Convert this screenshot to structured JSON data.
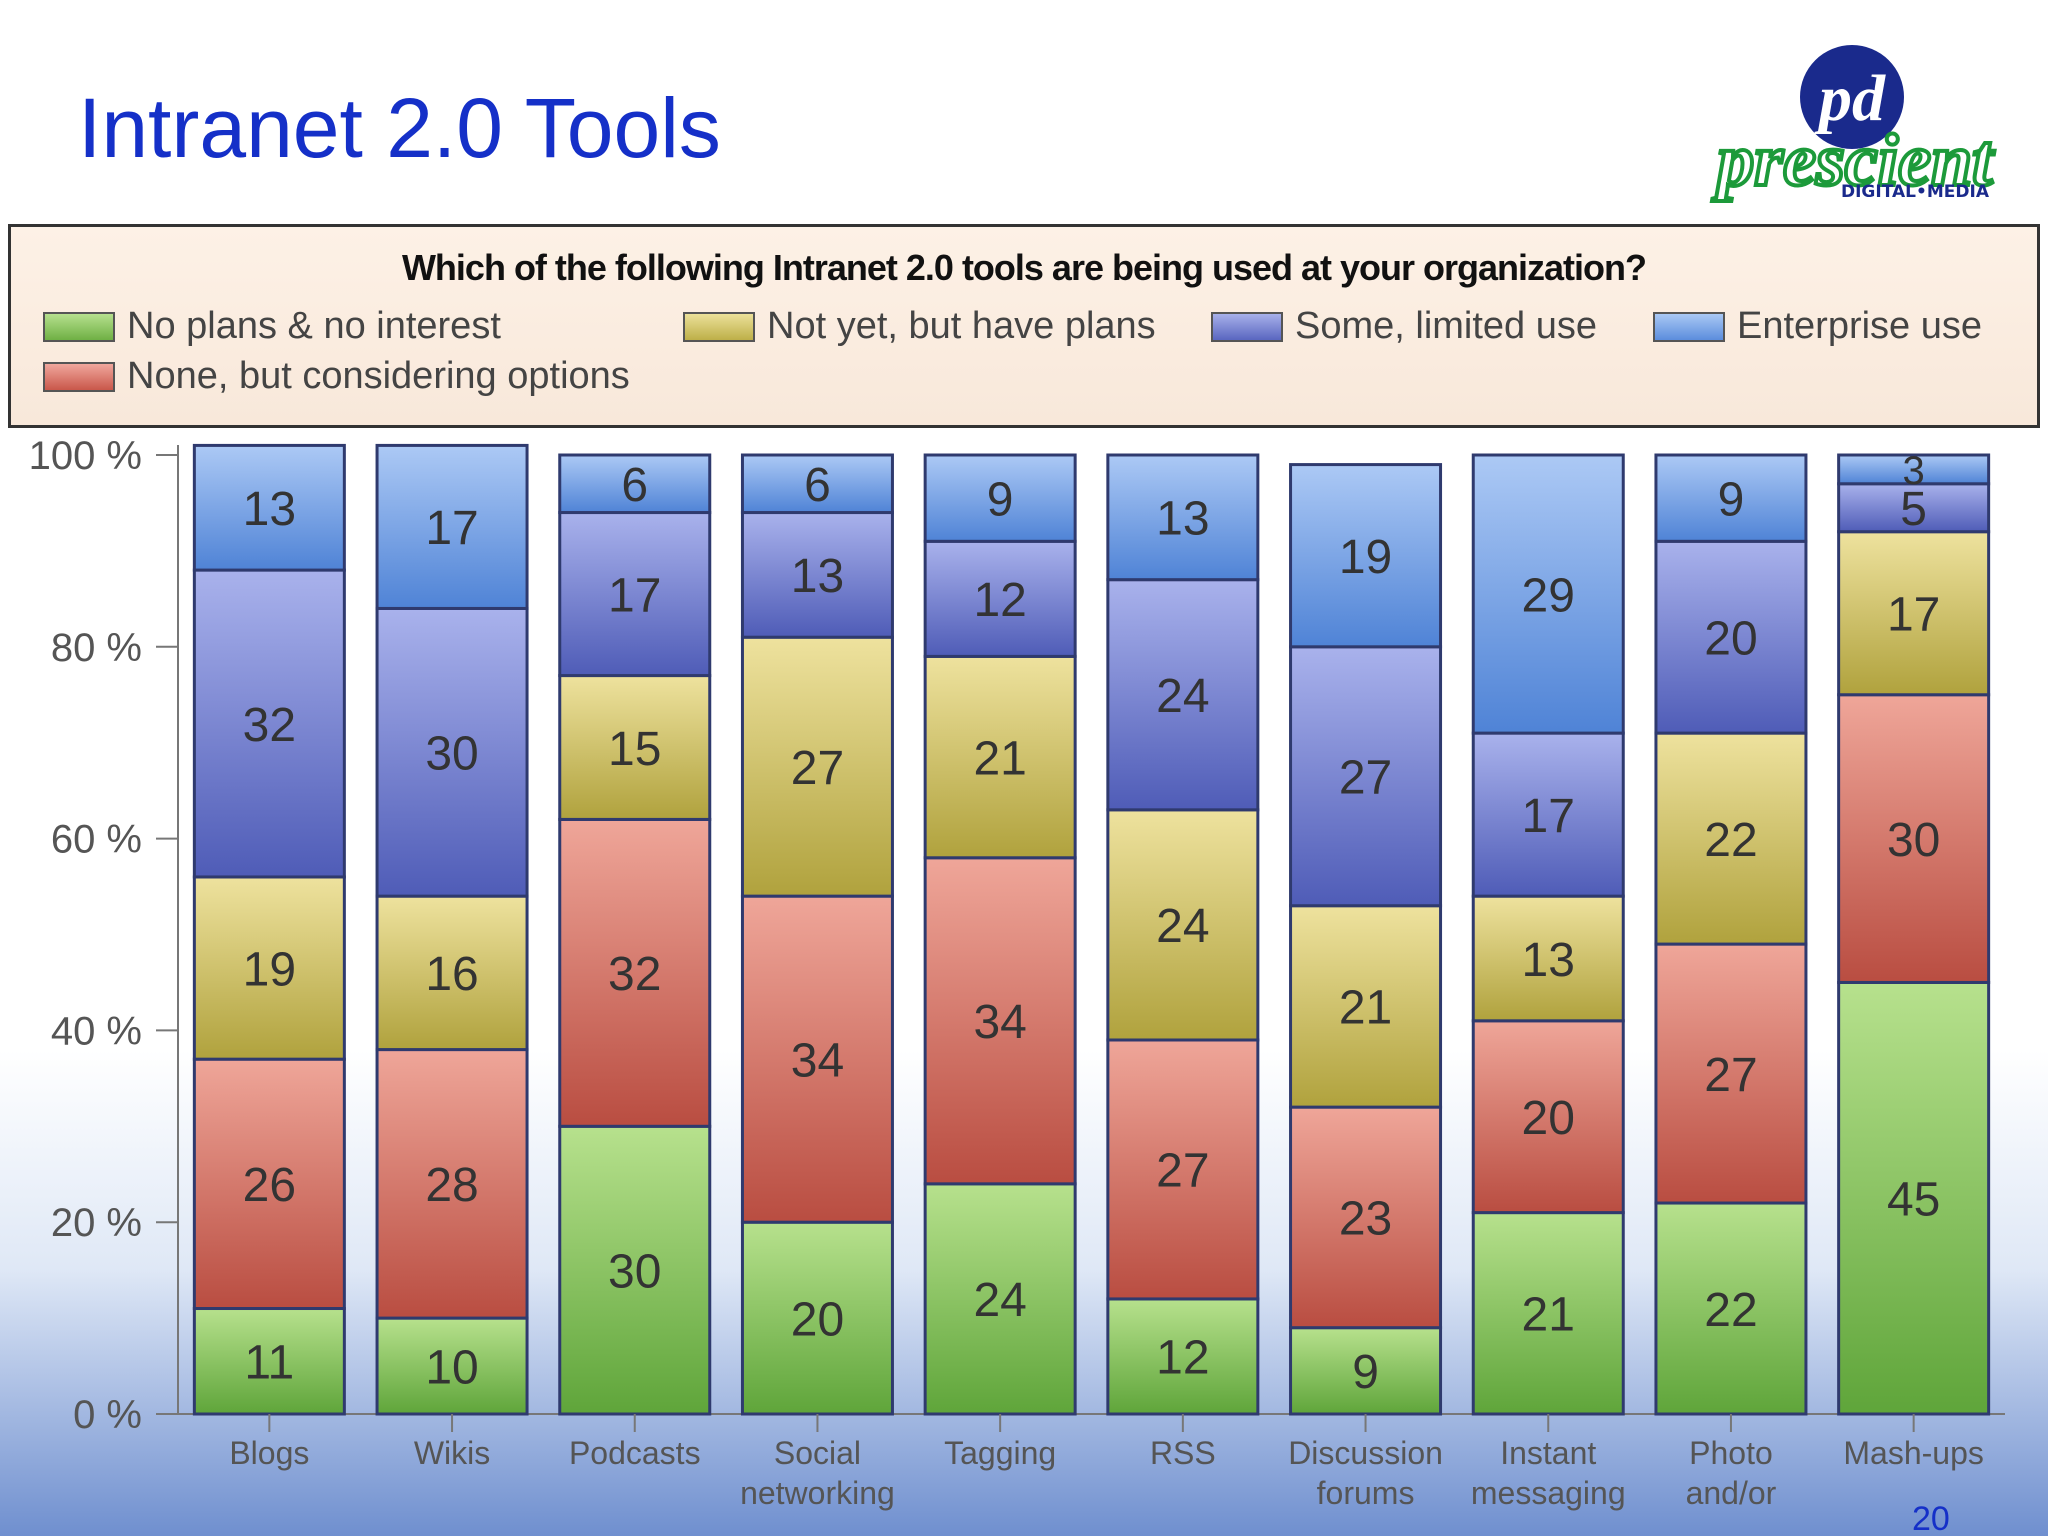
{
  "slide": {
    "title": "Intranet 2.0 Tools",
    "page_number": "20"
  },
  "logo": {
    "monogram": "pd",
    "name": "prescient",
    "tagline": "DIGITAL•MEDIA",
    "color_primary": "#1a2a8c",
    "color_secondary": "#1c9a3a"
  },
  "chart_data": {
    "type": "bar",
    "stacked": true,
    "title": "Which of the following Intranet 2.0 tools are being used at your organization?",
    "categories": [
      [
        "Blogs"
      ],
      [
        "Wikis"
      ],
      [
        "Podcasts"
      ],
      [
        "Social",
        "networking"
      ],
      [
        "Tagging"
      ],
      [
        "RSS"
      ],
      [
        "Discussion",
        "forums"
      ],
      [
        "Instant",
        "messaging"
      ],
      [
        "Photo",
        "and/or"
      ],
      [
        "Mash-ups"
      ]
    ],
    "series": [
      {
        "name": "No plans & no interest",
        "color": "#7dbe4e",
        "values": [
          11,
          10,
          30,
          20,
          24,
          12,
          9,
          21,
          22,
          45
        ]
      },
      {
        "name": "None, but considering options",
        "color": "#d8695a",
        "values": [
          26,
          28,
          32,
          34,
          34,
          27,
          23,
          20,
          27,
          30
        ]
      },
      {
        "name": "Not yet, but have plans",
        "color": "#cfc15a",
        "values": [
          19,
          16,
          15,
          27,
          21,
          24,
          21,
          13,
          22,
          17
        ]
      },
      {
        "name": "Some, limited use",
        "color": "#6c79cf",
        "values": [
          32,
          30,
          17,
          13,
          12,
          24,
          27,
          17,
          20,
          5
        ]
      },
      {
        "name": "Enterprise use",
        "color": "#6a9be6",
        "values": [
          13,
          17,
          6,
          6,
          9,
          13,
          19,
          29,
          9,
          3
        ]
      }
    ],
    "y_ticks": [
      "0 %",
      "20 %",
      "40 %",
      "60 %",
      "80 %",
      "100 %"
    ],
    "ylim": [
      0,
      100
    ],
    "legend_position": "top"
  }
}
